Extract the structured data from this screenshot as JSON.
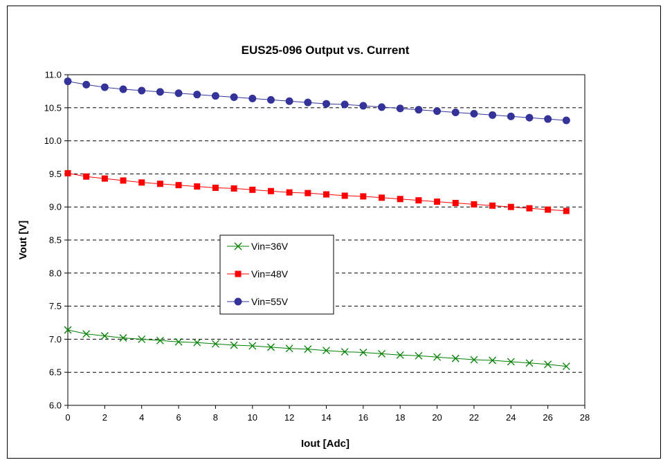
{
  "chart_data": {
    "type": "line",
    "title": "EUS25-096 Output vs. Current",
    "xlabel": "Iout [Adc]",
    "ylabel": "Vout [V]",
    "xlim": [
      0,
      28
    ],
    "ylim": [
      6.0,
      11.0
    ],
    "xticks": [
      0,
      2,
      4,
      6,
      8,
      10,
      12,
      14,
      16,
      18,
      20,
      22,
      24,
      26,
      28
    ],
    "yticks": [
      6.0,
      6.5,
      7.0,
      7.5,
      8.0,
      8.5,
      9.0,
      9.5,
      10.0,
      10.5,
      11.0
    ],
    "ytick_labels": [
      "6.0",
      "6.5",
      "7.0",
      "7.5",
      "8.0",
      "8.5",
      "9.0",
      "9.5",
      "10.0",
      "10.5",
      "11.0"
    ],
    "grid": "horizontal dashed",
    "legend_position": "center-left",
    "x": [
      0,
      1,
      2,
      3,
      4,
      5,
      6,
      7,
      8,
      9,
      10,
      11,
      12,
      13,
      14,
      15,
      16,
      17,
      18,
      19,
      20,
      21,
      22,
      23,
      24,
      25,
      26,
      27
    ],
    "series": [
      {
        "name": "Vin=36V",
        "color": "#008000",
        "marker": "x",
        "values": [
          7.14,
          7.08,
          7.05,
          7.02,
          7.0,
          6.98,
          6.96,
          6.95,
          6.93,
          6.91,
          6.9,
          6.88,
          6.86,
          6.85,
          6.83,
          6.81,
          6.8,
          6.78,
          6.76,
          6.75,
          6.73,
          6.71,
          6.69,
          6.68,
          6.66,
          6.64,
          6.62,
          6.59
        ]
      },
      {
        "name": "Vin=48V",
        "color": "#ff0000",
        "marker": "square",
        "values": [
          9.51,
          9.46,
          9.43,
          9.4,
          9.37,
          9.35,
          9.33,
          9.31,
          9.29,
          9.28,
          9.26,
          9.24,
          9.22,
          9.21,
          9.19,
          9.17,
          9.16,
          9.14,
          9.12,
          9.1,
          9.08,
          9.06,
          9.04,
          9.02,
          9.0,
          8.98,
          8.96,
          8.94
        ]
      },
      {
        "name": "Vin=55V",
        "color": "#333399",
        "marker": "circle",
        "values": [
          10.9,
          10.85,
          10.81,
          10.78,
          10.76,
          10.74,
          10.72,
          10.7,
          10.68,
          10.66,
          10.64,
          10.62,
          10.6,
          10.58,
          10.56,
          10.55,
          10.53,
          10.51,
          10.49,
          10.47,
          10.45,
          10.43,
          10.41,
          10.39,
          10.37,
          10.35,
          10.33,
          10.31
        ]
      }
    ]
  }
}
